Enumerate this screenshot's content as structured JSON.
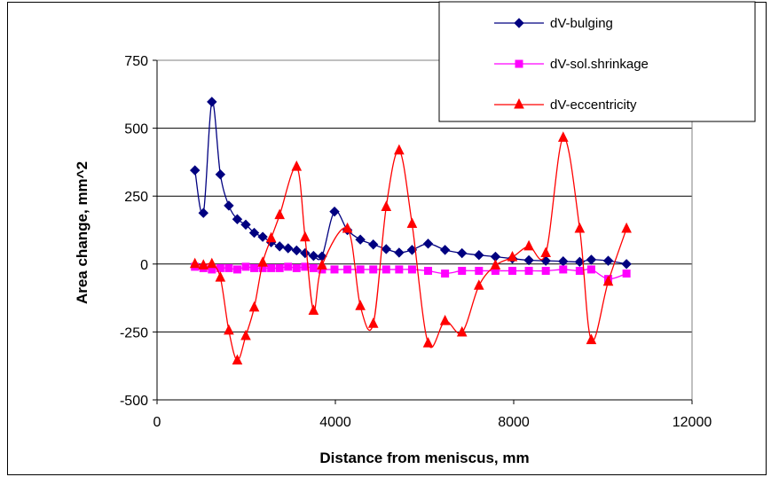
{
  "chart_data": {
    "type": "line",
    "title": "",
    "xlabel": "Distance from meniscus, mm",
    "ylabel": "Area change, mm^2",
    "xlim": [
      0,
      12000
    ],
    "ylim": [
      -500,
      750
    ],
    "x_ticks": [
      0,
      4000,
      8000,
      12000
    ],
    "y_ticks": [
      -500,
      -250,
      0,
      250,
      500,
      750
    ],
    "grid": "horizontal",
    "legend_position": "top-right",
    "series": [
      {
        "name": "dV-bulging",
        "color": "#000080",
        "marker": "diamond",
        "points": [
          [
            850,
            345
          ],
          [
            1040,
            188
          ],
          [
            1230,
            597
          ],
          [
            1420,
            330
          ],
          [
            1610,
            215
          ],
          [
            1800,
            165
          ],
          [
            1990,
            145
          ],
          [
            2180,
            115
          ],
          [
            2370,
            100
          ],
          [
            2560,
            80
          ],
          [
            2750,
            65
          ],
          [
            2940,
            58
          ],
          [
            3130,
            50
          ],
          [
            3320,
            40
          ],
          [
            3510,
            30
          ],
          [
            3700,
            28
          ],
          [
            3980,
            193
          ],
          [
            4270,
            125
          ],
          [
            4560,
            90
          ],
          [
            4850,
            72
          ],
          [
            5140,
            55
          ],
          [
            5430,
            42
          ],
          [
            5720,
            52
          ],
          [
            6080,
            75
          ],
          [
            6460,
            52
          ],
          [
            6840,
            40
          ],
          [
            7220,
            33
          ],
          [
            7590,
            27
          ],
          [
            7970,
            20
          ],
          [
            8340,
            14
          ],
          [
            8720,
            12
          ],
          [
            9110,
            10
          ],
          [
            9480,
            8
          ],
          [
            9740,
            16
          ],
          [
            10120,
            12
          ],
          [
            10530,
            0
          ]
        ]
      },
      {
        "name": "dV-sol.shrinkage",
        "color": "#FF00FF",
        "marker": "square",
        "points": [
          [
            850,
            -10
          ],
          [
            1040,
            -15
          ],
          [
            1230,
            -20
          ],
          [
            1420,
            -15
          ],
          [
            1610,
            -15
          ],
          [
            1800,
            -20
          ],
          [
            1990,
            -10
          ],
          [
            2180,
            -15
          ],
          [
            2370,
            -15
          ],
          [
            2560,
            -15
          ],
          [
            2750,
            -15
          ],
          [
            2940,
            -10
          ],
          [
            3130,
            -15
          ],
          [
            3320,
            -10
          ],
          [
            3510,
            -15
          ],
          [
            3700,
            -20
          ],
          [
            3980,
            -20
          ],
          [
            4270,
            -20
          ],
          [
            4560,
            -20
          ],
          [
            4850,
            -20
          ],
          [
            5140,
            -20
          ],
          [
            5430,
            -20
          ],
          [
            5720,
            -20
          ],
          [
            6080,
            -25
          ],
          [
            6460,
            -35
          ],
          [
            6840,
            -25
          ],
          [
            7220,
            -25
          ],
          [
            7590,
            -25
          ],
          [
            7970,
            -25
          ],
          [
            8340,
            -25
          ],
          [
            8720,
            -25
          ],
          [
            9110,
            -20
          ],
          [
            9480,
            -25
          ],
          [
            9740,
            -20
          ],
          [
            10120,
            -55
          ],
          [
            10530,
            -35
          ]
        ]
      },
      {
        "name": "dV-eccentricity",
        "color": "#FF0000",
        "marker": "triangle",
        "points": [
          [
            850,
            0
          ],
          [
            1040,
            -5
          ],
          [
            1230,
            0
          ],
          [
            1420,
            -50
          ],
          [
            1610,
            -245
          ],
          [
            1800,
            -355
          ],
          [
            1990,
            -265
          ],
          [
            2180,
            -160
          ],
          [
            2370,
            5
          ],
          [
            2560,
            95
          ],
          [
            2750,
            180
          ],
          [
            3130,
            358
          ],
          [
            3320,
            98
          ],
          [
            3510,
            -172
          ],
          [
            3700,
            -5
          ],
          [
            4270,
            130
          ],
          [
            4560,
            -155
          ],
          [
            4850,
            -220
          ],
          [
            5140,
            210
          ],
          [
            5430,
            418
          ],
          [
            5720,
            148
          ],
          [
            6080,
            -292
          ],
          [
            6460,
            -210
          ],
          [
            6840,
            -252
          ],
          [
            7220,
            -80
          ],
          [
            7590,
            -5
          ],
          [
            7970,
            25
          ],
          [
            8340,
            65
          ],
          [
            8720,
            40
          ],
          [
            9110,
            465
          ],
          [
            9480,
            130
          ],
          [
            9740,
            -280
          ],
          [
            10120,
            -65
          ],
          [
            10530,
            130
          ]
        ]
      }
    ]
  }
}
